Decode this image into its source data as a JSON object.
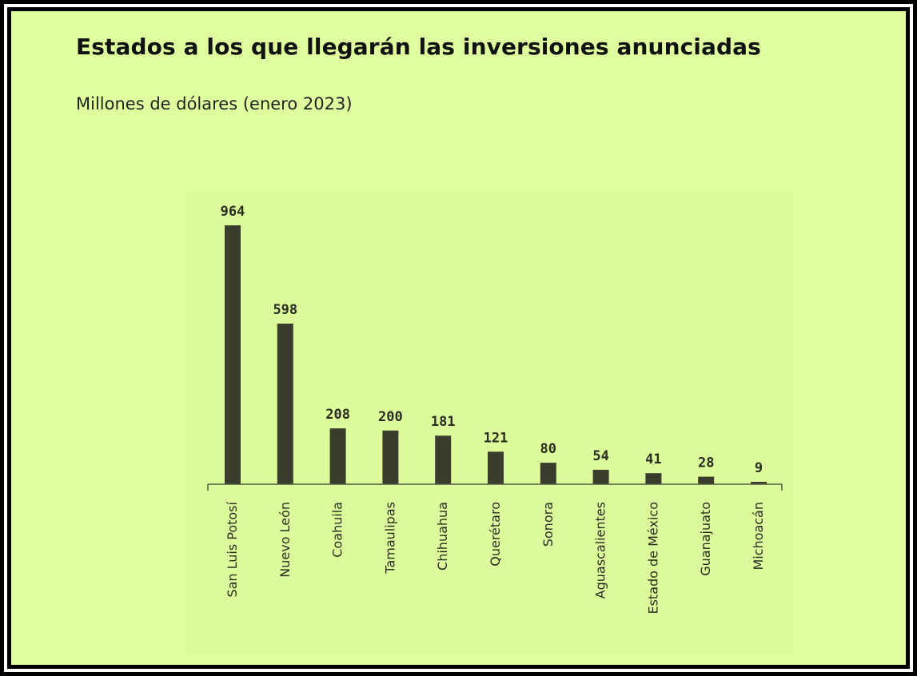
{
  "header": {
    "title": "Estados a los que llegarán las inversiones anunciadas",
    "subtitle": "Millones de dólares (enero 2023)"
  },
  "colors": {
    "background": "#dfff9f",
    "bar": "#3a3d2c",
    "text": "#111111"
  },
  "chart_data": {
    "type": "bar",
    "title": "Estados a los que llegarán las inversiones anunciadas",
    "subtitle": "Millones de dólares (enero 2023)",
    "xlabel": "",
    "ylabel": "",
    "grid": false,
    "categories": [
      "San Luis Potosí",
      "Nuevo León",
      "Coahuila",
      "Tamaulipas",
      "Chihuahua",
      "Querétaro",
      "Sonora",
      "Aguascalientes",
      "Estado de México",
      "Guanajuato",
      "Michoacán"
    ],
    "values": [
      964,
      598,
      208,
      200,
      181,
      121,
      80,
      54,
      41,
      28,
      9
    ],
    "data_labels": [
      "964",
      "598",
      "208",
      "200",
      "181",
      "121",
      "80",
      "54",
      "41",
      "28",
      "9"
    ],
    "ylim": [
      0,
      964
    ]
  }
}
